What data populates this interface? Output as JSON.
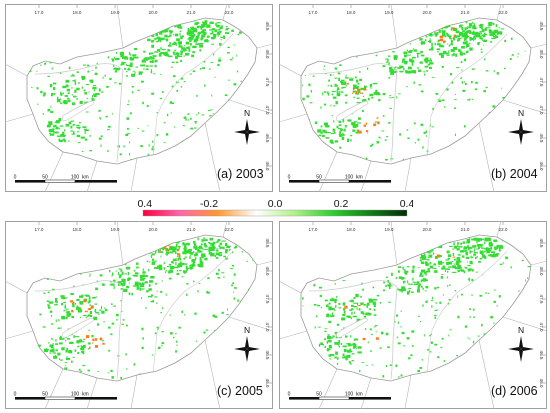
{
  "figure": {
    "panels": [
      {
        "label": "(a) 2003",
        "year": 2003,
        "top_ticks": [
          "17.0",
          "18.0",
          "19.0",
          "20.0",
          "21.0",
          "22.0"
        ],
        "side_ticks": [
          "48.5",
          "48.0",
          "47.5",
          "47.0",
          "46.5",
          "46.0"
        ],
        "orange_density": 0.0
      },
      {
        "label": "(b) 2004",
        "year": 2004,
        "top_ticks": [
          "17.0",
          "18.0",
          "19.0",
          "20.0",
          "21.0",
          "22.0"
        ],
        "side_ticks": [
          "48.5",
          "48.0",
          "47.5",
          "47.0",
          "46.5",
          "46.0"
        ],
        "orange_density": 0.6
      },
      {
        "label": "(c) 2005",
        "year": 2005,
        "top_ticks": [
          "17.0",
          "18.0",
          "19.0",
          "20.0",
          "21.0",
          "22.0"
        ],
        "side_ticks": [
          "48.5",
          "48.0",
          "47.5",
          "47.0",
          "46.5",
          "46.0"
        ],
        "orange_density": 0.7
      },
      {
        "label": "(d) 2006",
        "year": 2006,
        "top_ticks": [
          "17.0",
          "18.0",
          "19.0",
          "20.0",
          "21.0",
          "22.0"
        ],
        "side_ticks": [
          "48.5",
          "48.0",
          "47.5",
          "47.0",
          "46.5",
          "46.0"
        ],
        "orange_density": 0.15
      }
    ],
    "scale_bar": {
      "labels": [
        "0",
        "50",
        "100"
      ],
      "unit": "km"
    },
    "north_arrow": {
      "label": "N",
      "icon": "north-arrow-icon"
    },
    "colorbar": {
      "ticks": [
        "-0.4",
        "-0.2",
        "0.0",
        "0.2",
        "0.4"
      ],
      "range": [
        -0.4,
        0.4
      ],
      "colors": [
        "#ff0040",
        "#ff66aa",
        "#ff9a30",
        "#ffffff",
        "#b4f08c",
        "#30d030",
        "#128018",
        "#022c08"
      ]
    },
    "colors": {
      "border": "#8a8a8a",
      "country_outline": "#b5b5b5",
      "positive_green": "#33dd33",
      "negative_orange": "#ff7a14",
      "lake": "#cccccc"
    }
  }
}
